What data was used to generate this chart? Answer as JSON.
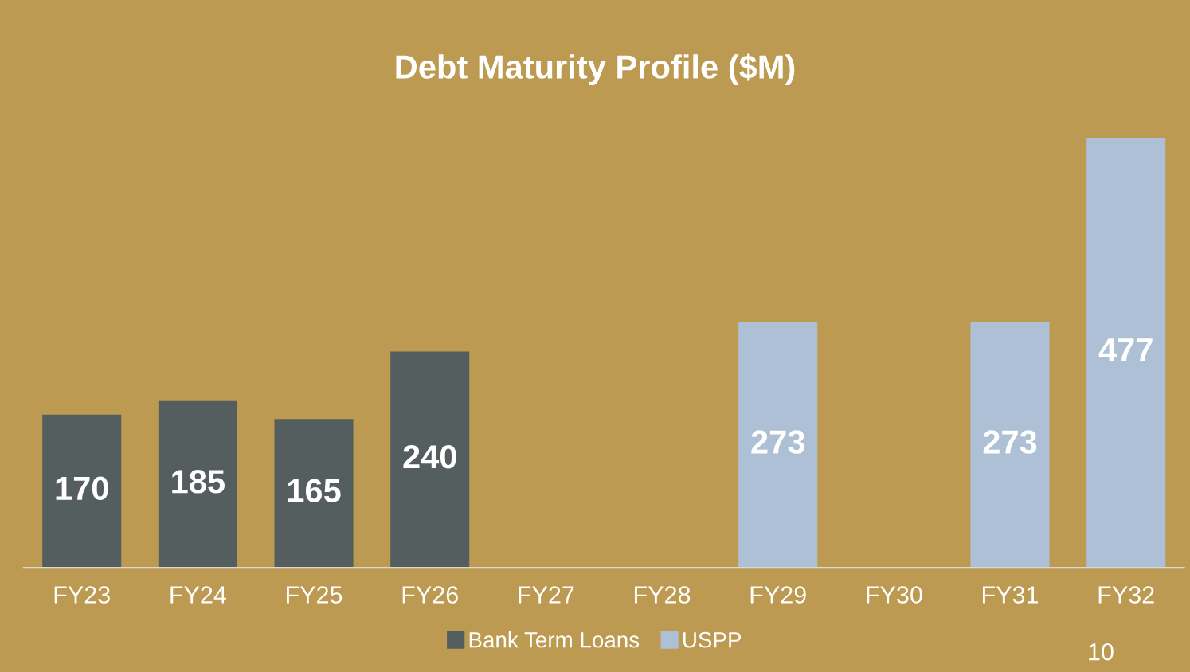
{
  "chart_data": {
    "type": "bar",
    "title": "Debt Maturity Profile ($M)",
    "categories": [
      "FY23",
      "FY24",
      "FY25",
      "FY26",
      "FY27",
      "FY28",
      "FY29",
      "FY30",
      "FY31",
      "FY32"
    ],
    "series": [
      {
        "name": "Bank Term Loans",
        "color": "#545e5e",
        "values": [
          170,
          185,
          165,
          240,
          null,
          null,
          null,
          null,
          null,
          null
        ]
      },
      {
        "name": "USPP",
        "color": "#adc0d6",
        "values": [
          null,
          null,
          null,
          null,
          null,
          null,
          273,
          null,
          273,
          477
        ]
      }
    ],
    "data_labels": true,
    "legend": "bottom",
    "grid": false,
    "annotations": [
      "10"
    ]
  }
}
